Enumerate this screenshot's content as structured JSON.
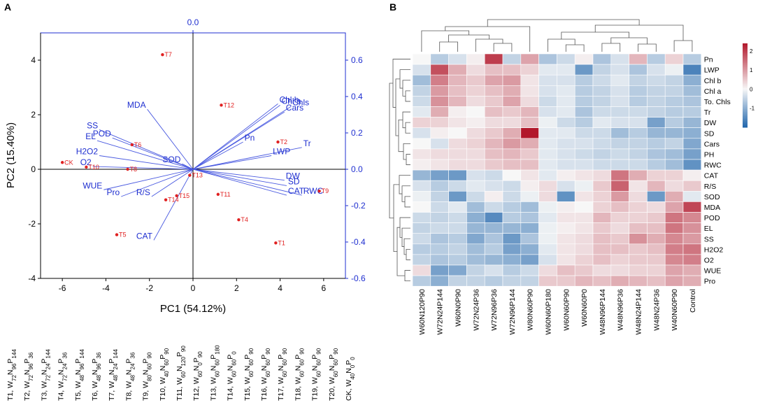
{
  "panels": {
    "a_label": "A",
    "b_label": "B"
  },
  "chart_data": [
    {
      "type": "scatter",
      "subtype": "pca-biplot",
      "xlabel": "PC1 (54.12%)",
      "ylabel": "PC2 (15.40%)",
      "xlim": [
        -7,
        7
      ],
      "ylim": [
        -4,
        5
      ],
      "x_ticks": [
        -6,
        -4,
        -2,
        0,
        2,
        4,
        6
      ],
      "y_ticks": [
        -4,
        -2,
        0,
        2,
        4
      ],
      "loading_top_tick": "0.0",
      "loading_ylim": [
        -0.6,
        0.75
      ],
      "loading_right_ticks": [
        "0.6",
        "0.4",
        "0.2",
        "0.0",
        "-0.2",
        "-0.4",
        "-0.6"
      ],
      "scores": [
        {
          "label": "T7",
          "x": -1.4,
          "y": 4.2
        },
        {
          "label": "T12",
          "x": 1.3,
          "y": 2.35
        },
        {
          "label": "T6",
          "x": -2.8,
          "y": 0.9
        },
        {
          "label": "T2",
          "x": 3.9,
          "y": 1.0
        },
        {
          "label": "CK",
          "x": -6.0,
          "y": 0.25
        },
        {
          "label": "T10",
          "x": -4.9,
          "y": 0.08
        },
        {
          "label": "T8",
          "x": -3.0,
          "y": 0.0
        },
        {
          "label": "T13",
          "x": -0.15,
          "y": -0.22
        },
        {
          "label": "T9",
          "x": 5.8,
          "y": -0.8
        },
        {
          "label": "T11",
          "x": 1.15,
          "y": -0.92
        },
        {
          "label": "T15",
          "x": -0.75,
          "y": -0.97
        },
        {
          "label": "T14",
          "x": -1.25,
          "y": -1.12
        },
        {
          "label": "T4",
          "x": 2.1,
          "y": -1.85
        },
        {
          "label": "T5",
          "x": -3.5,
          "y": -2.4
        },
        {
          "label": "T1",
          "x": 3.8,
          "y": -2.7
        }
      ],
      "loadings": [
        {
          "label": "Chl b",
          "x": 3.9,
          "y": 2.4
        },
        {
          "label": "Chl a",
          "x": 4.0,
          "y": 2.35
        },
        {
          "label": "Chls",
          "x": 4.5,
          "y": 2.3
        },
        {
          "label": "Cars",
          "x": 4.2,
          "y": 2.1
        },
        {
          "label": "Pn",
          "x": 2.3,
          "y": 1.0
        },
        {
          "label": "Tr",
          "x": 5.0,
          "y": 0.8
        },
        {
          "label": "LWP",
          "x": 3.6,
          "y": 0.5
        },
        {
          "label": "SOD",
          "x": -0.5,
          "y": 0.2
        },
        {
          "label": "DW",
          "x": 4.2,
          "y": -0.4
        },
        {
          "label": "SD",
          "x": 4.3,
          "y": -0.6
        },
        {
          "label": "CAT",
          "x": 4.3,
          "y": -0.95
        },
        {
          "label": "RWC",
          "x": 5.0,
          "y": -0.95
        },
        {
          "label": "MDA",
          "x": -2.1,
          "y": 2.2
        },
        {
          "label": "SS",
          "x": -4.3,
          "y": 1.45
        },
        {
          "label": "POD",
          "x": -3.7,
          "y": 1.15
        },
        {
          "label": "EL",
          "x": -4.4,
          "y": 1.05
        },
        {
          "label": "H2O2",
          "x": -4.3,
          "y": 0.5
        },
        {
          "label": "O2",
          "x": -4.6,
          "y": 0.1
        },
        {
          "label": "WUE",
          "x": -4.1,
          "y": -0.75
        },
        {
          "label": "Pro",
          "x": -3.3,
          "y": -1.0
        },
        {
          "label": "R/S",
          "x": -1.9,
          "y": -1.0
        },
        {
          "label": "CAT",
          "x": -1.8,
          "y": -2.6
        }
      ]
    },
    {
      "type": "heatmap",
      "rows": [
        "Pn",
        "LWP",
        "Chl b",
        "Chl a",
        "To. Chls",
        "Tr",
        "DW",
        "SD",
        "Cars",
        "PH",
        "RWC",
        "CAT",
        "R/S",
        "SOD",
        "MDA",
        "POD",
        "EL",
        "SS",
        "H2O2",
        "O2",
        "WUE",
        "Pro"
      ],
      "columns": [
        "W60N120P90",
        "W72N24P144",
        "W60N0P90",
        "W72N24P36",
        "W72N96P36",
        "W72N96P144",
        "W80N60P90",
        "W60N60P180",
        "W60N60P90",
        "W60N60P0",
        "W48N96P144",
        "W48N96P36",
        "W48N24P144",
        "W48N24P36",
        "W40N60P90",
        "Control"
      ],
      "values": [
        [
          0.0,
          -0.6,
          -0.3,
          0.1,
          2.0,
          -0.5,
          0.9,
          -0.7,
          -0.4,
          0.1,
          -0.7,
          -0.3,
          0.7,
          -0.6,
          0.4,
          -0.6
        ],
        [
          -0.3,
          1.8,
          0.8,
          0.3,
          0.6,
          0.6,
          0.4,
          -0.2,
          -0.2,
          -1.3,
          -0.5,
          -0.3,
          -0.7,
          -0.3,
          -0.1,
          -1.6
        ],
        [
          -0.8,
          1.3,
          0.7,
          0.5,
          0.9,
          1.0,
          0.2,
          -0.3,
          -0.3,
          -0.6,
          -0.4,
          -0.2,
          -0.5,
          -0.4,
          -0.5,
          -1.0
        ],
        [
          -0.5,
          1.0,
          0.6,
          0.4,
          0.6,
          0.8,
          0.2,
          -0.3,
          -0.2,
          -0.6,
          -0.5,
          -0.3,
          -0.6,
          -0.5,
          -0.5,
          -0.8
        ],
        [
          -0.4,
          1.1,
          0.7,
          0.3,
          0.5,
          0.9,
          0.3,
          -0.4,
          -0.2,
          -0.6,
          -0.5,
          -0.3,
          -0.6,
          -0.5,
          -0.6,
          -0.7
        ],
        [
          -0.2,
          0.8,
          0.1,
          0.0,
          0.6,
          0.5,
          0.7,
          -0.3,
          -0.2,
          -0.7,
          -0.4,
          -0.4,
          -0.4,
          -0.5,
          -0.6,
          -0.6
        ],
        [
          0.4,
          0.4,
          0.2,
          0.1,
          0.3,
          0.3,
          0.6,
          -0.1,
          -0.4,
          -0.6,
          -0.2,
          -0.3,
          -0.3,
          -1.2,
          -0.6,
          -0.9
        ],
        [
          -0.3,
          0.1,
          0.0,
          0.3,
          0.5,
          0.8,
          2.4,
          -0.2,
          -0.2,
          -0.4,
          -0.4,
          -0.8,
          -0.6,
          -0.9,
          -0.9,
          -1.0
        ],
        [
          0.0,
          -0.3,
          0.3,
          0.4,
          0.7,
          1.0,
          0.8,
          -0.2,
          -0.3,
          -0.3,
          -0.4,
          -0.5,
          -0.5,
          -0.6,
          -0.5,
          -1.1
        ],
        [
          0.2,
          0.3,
          0.3,
          0.3,
          0.6,
          0.7,
          0.5,
          -0.2,
          -0.3,
          -0.4,
          -0.5,
          -0.4,
          -0.5,
          -0.7,
          -0.8,
          -1.2
        ],
        [
          0.1,
          0.2,
          0.3,
          0.3,
          0.5,
          0.6,
          0.6,
          -0.2,
          -0.3,
          -0.3,
          -0.4,
          -0.4,
          -0.4,
          -0.6,
          -0.8,
          -1.4
        ],
        [
          -0.9,
          -1.2,
          -1.3,
          -0.3,
          -0.4,
          0.0,
          0.2,
          -0.2,
          0.1,
          0.2,
          0.3,
          1.4,
          0.8,
          0.4,
          0.4,
          0.1
        ],
        [
          -0.3,
          -0.6,
          -0.4,
          -0.2,
          -0.3,
          -0.4,
          0.1,
          0.3,
          -0.3,
          -0.1,
          0.5,
          1.6,
          0.2,
          0.7,
          0.3,
          0.5
        ],
        [
          -0.1,
          -0.5,
          -1.3,
          -0.4,
          0.1,
          -0.4,
          -0.1,
          0.3,
          -1.4,
          0.2,
          0.4,
          1.0,
          0.3,
          -1.3,
          0.8,
          -0.2
        ],
        [
          0.0,
          -0.4,
          -0.2,
          -0.8,
          -0.4,
          -0.6,
          -0.8,
          -0.1,
          0.1,
          0.0,
          0.4,
          0.6,
          0.4,
          0.3,
          0.9,
          1.9
        ],
        [
          -0.4,
          -0.5,
          -0.4,
          -1.0,
          -1.5,
          -0.6,
          -0.7,
          -0.2,
          0.2,
          0.2,
          0.7,
          0.4,
          0.4,
          0.5,
          1.4,
          1.2
        ],
        [
          -0.5,
          -0.4,
          -0.4,
          -0.9,
          -0.9,
          -0.9,
          -1.0,
          -0.1,
          0.1,
          0.2,
          0.5,
          0.3,
          0.6,
          0.6,
          1.4,
          1.1
        ],
        [
          -0.4,
          -0.7,
          -0.6,
          -1.1,
          -0.7,
          -1.3,
          -0.7,
          -0.1,
          0.2,
          0.3,
          0.6,
          0.5,
          1.1,
          0.8,
          1.2,
          1.0
        ],
        [
          -0.6,
          -0.6,
          -0.5,
          -0.8,
          -0.6,
          -1.2,
          -1.0,
          -0.2,
          0.2,
          0.3,
          0.6,
          0.6,
          0.5,
          0.6,
          1.3,
          1.4
        ],
        [
          -0.5,
          -0.7,
          -0.6,
          -0.8,
          -0.9,
          -1.0,
          -1.2,
          -0.3,
          0.2,
          0.4,
          0.6,
          0.4,
          0.5,
          0.5,
          1.2,
          1.3
        ],
        [
          0.3,
          -1.2,
          -1.1,
          -0.5,
          -0.3,
          -0.6,
          -0.4,
          0.3,
          0.6,
          0.5,
          0.3,
          0.3,
          0.4,
          0.4,
          0.9,
          0.8
        ],
        [
          -0.6,
          -1.0,
          -0.5,
          -0.5,
          -0.6,
          -0.5,
          -0.5,
          0.5,
          0.5,
          0.7,
          0.6,
          0.8,
          0.7,
          0.6,
          0.9,
          0.8
        ]
      ],
      "colorbar_ticks": [
        "2",
        "1",
        "0",
        "-1"
      ],
      "colorbar_range": [
        -2,
        2.4
      ]
    }
  ],
  "legend": [
    {
      "base": "T1, W",
      "parts": [
        [
          "72",
          "N"
        ],
        [
          "96",
          "P"
        ],
        [
          "144",
          ""
        ]
      ]
    },
    {
      "base": "T2, W",
      "parts": [
        [
          "72",
          "N"
        ],
        [
          "96",
          "P"
        ],
        [
          "36",
          ""
        ]
      ]
    },
    {
      "base": "T3, W",
      "parts": [
        [
          "72",
          "N"
        ],
        [
          "24",
          "P"
        ],
        [
          "144",
          ""
        ]
      ]
    },
    {
      "base": "T4, W",
      "parts": [
        [
          "72",
          "N"
        ],
        [
          "24",
          "P"
        ],
        [
          "36",
          ""
        ]
      ]
    },
    {
      "base": "T5, W",
      "parts": [
        [
          "48",
          "N"
        ],
        [
          "96",
          "P"
        ],
        [
          "144",
          ""
        ]
      ]
    },
    {
      "base": "T6, W",
      "parts": [
        [
          "48",
          "N"
        ],
        [
          "96",
          "P"
        ],
        [
          "36",
          ""
        ]
      ]
    },
    {
      "base": "T7, W",
      "parts": [
        [
          "48",
          "N"
        ],
        [
          "24",
          "P"
        ],
        [
          "144",
          ""
        ]
      ]
    },
    {
      "base": "T8, W",
      "parts": [
        [
          "48",
          "N"
        ],
        [
          "24",
          "P"
        ],
        [
          "36",
          ""
        ]
      ]
    },
    {
      "base": "T9, W",
      "parts": [
        [
          "80",
          "N"
        ],
        [
          "60",
          "P"
        ],
        [
          "90",
          ""
        ]
      ]
    },
    {
      "base": "T10, W",
      "parts": [
        [
          "40",
          "N"
        ],
        [
          "60",
          "P"
        ],
        [
          "90",
          ""
        ]
      ]
    },
    {
      "base": "T11, W",
      "parts": [
        [
          "60",
          "N"
        ],
        [
          "120",
          "P"
        ],
        [
          "90",
          ""
        ]
      ]
    },
    {
      "base": "T12, W",
      "parts": [
        [
          "60",
          "N"
        ],
        [
          "0",
          "P"
        ],
        [
          "90",
          ""
        ]
      ]
    },
    {
      "base": "T13, W",
      "parts": [
        [
          "60",
          "N"
        ],
        [
          "60",
          "P"
        ],
        [
          "180",
          ""
        ]
      ]
    },
    {
      "base": "T14, W",
      "parts": [
        [
          "60",
          "N"
        ],
        [
          "60",
          "P"
        ],
        [
          "0",
          ""
        ]
      ]
    },
    {
      "base": "T15, W",
      "parts": [
        [
          "60",
          "N"
        ],
        [
          "60",
          "P"
        ],
        [
          "90",
          ""
        ]
      ]
    },
    {
      "base": "T16, W",
      "parts": [
        [
          "60",
          "N"
        ],
        [
          "60",
          "P"
        ],
        [
          "90",
          ""
        ]
      ]
    },
    {
      "base": "T17, W",
      "parts": [
        [
          "60",
          "N"
        ],
        [
          "60",
          "P"
        ],
        [
          "90",
          ""
        ]
      ]
    },
    {
      "base": "T18, W",
      "parts": [
        [
          "60",
          "N"
        ],
        [
          "60",
          "P"
        ],
        [
          "90",
          ""
        ]
      ]
    },
    {
      "base": "T19, W",
      "parts": [
        [
          "60",
          "N"
        ],
        [
          "60",
          "P"
        ],
        [
          "90",
          ""
        ]
      ]
    },
    {
      "base": "T20, W",
      "parts": [
        [
          "60",
          "N"
        ],
        [
          "60",
          "P"
        ],
        [
          "90",
          ""
        ]
      ]
    },
    {
      "base": "CK, W",
      "parts": [
        [
          "40",
          "N"
        ],
        [
          "0",
          "P"
        ],
        [
          "0",
          ""
        ]
      ]
    }
  ]
}
